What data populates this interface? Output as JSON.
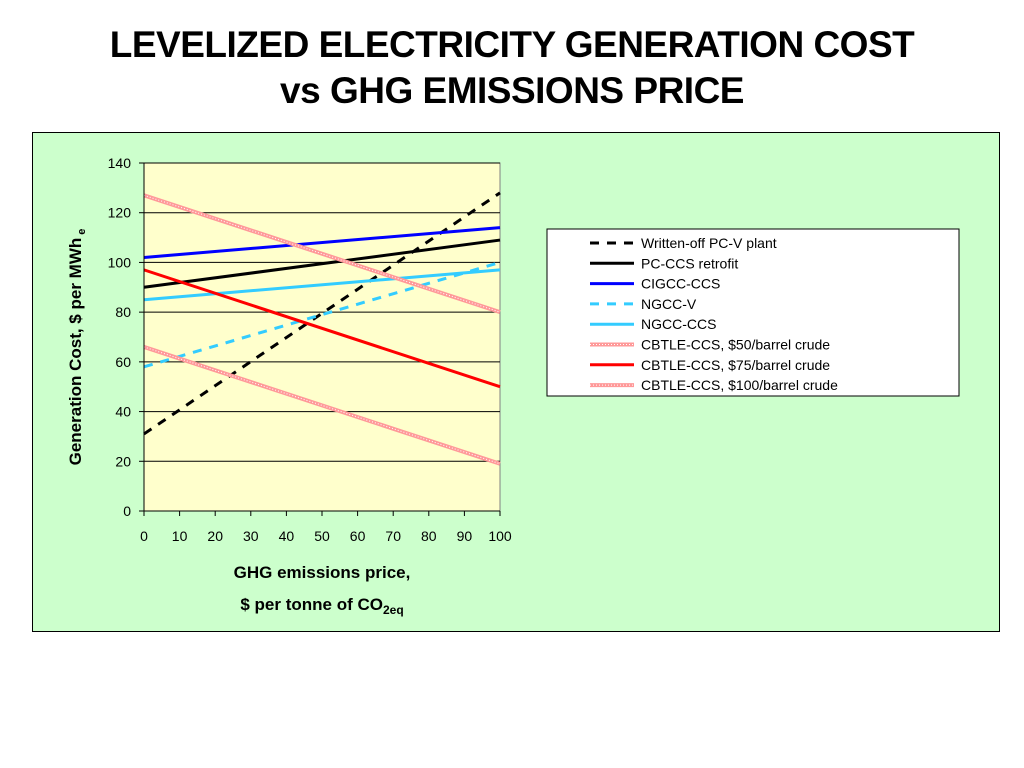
{
  "title": {
    "line1": "LEVELIZED ELECTRICITY GENERATION COST",
    "line2": "vs GHG EMISSIONS PRICE"
  },
  "colors": {
    "frame_bg": "#ccffcc",
    "plot_bg": "#ffffcc",
    "black": "#000000",
    "blue": "#0000ff",
    "cyan": "#33ccff",
    "pink": "#ff9999",
    "red": "#ff0000"
  },
  "chart_data": {
    "type": "line",
    "xlabel_line1": "GHG emissions price,",
    "xlabel_line2_main": "$ per tonne of CO",
    "xlabel_line2_sub": "2eq",
    "ylabel_main": "Generation Cost, $ per MWh",
    "ylabel_sub": "e",
    "xlim": [
      0,
      100
    ],
    "ylim": [
      0,
      140
    ],
    "xticks": [
      "0",
      "10",
      "20",
      "30",
      "40",
      "50",
      "60",
      "70",
      "80",
      "90",
      "100"
    ],
    "yticks": [
      "0",
      "20",
      "40",
      "60",
      "80",
      "100",
      "120",
      "140"
    ],
    "grid": "horizontal",
    "legend_position": "right",
    "series": [
      {
        "name": "Written-off PC-V plant",
        "x": [
          0,
          100
        ],
        "y": [
          31,
          128
        ],
        "color": "#000000",
        "style": "dashed"
      },
      {
        "name": "PC-CCS retrofit",
        "x": [
          0,
          100
        ],
        "y": [
          90,
          109
        ],
        "color": "#000000",
        "style": "solid"
      },
      {
        "name": "CIGCC-CCS",
        "x": [
          0,
          100
        ],
        "y": [
          102,
          114
        ],
        "color": "#0000ff",
        "style": "solid"
      },
      {
        "name": "NGCC-V",
        "x": [
          0,
          100
        ],
        "y": [
          58,
          100
        ],
        "color": "#33ccff",
        "style": "dashed"
      },
      {
        "name": "NGCC-CCS",
        "x": [
          0,
          100
        ],
        "y": [
          85,
          97
        ],
        "color": "#33ccff",
        "style": "solid"
      },
      {
        "name": "CBTLE-CCS, $50/barrel crude",
        "x": [
          0,
          100
        ],
        "y": [
          66,
          19
        ],
        "color": "#ff9999",
        "style": "hatched"
      },
      {
        "name": "CBTLE-CCS, $75/barrel crude",
        "x": [
          0,
          100
        ],
        "y": [
          97,
          50
        ],
        "color": "#ff0000",
        "style": "solid"
      },
      {
        "name": "CBTLE-CCS, $100/barrel crude",
        "x": [
          0,
          100
        ],
        "y": [
          127,
          80
        ],
        "color": "#ff9999",
        "style": "hatched"
      }
    ]
  }
}
